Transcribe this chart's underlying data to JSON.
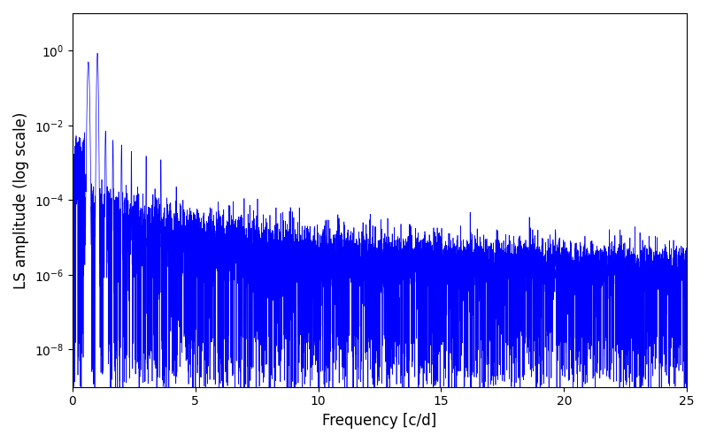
{
  "title": "",
  "xlabel": "Frequency [c/d]",
  "ylabel": "LS amplitude (log scale)",
  "xlim": [
    0,
    25
  ],
  "ylim_log": [
    1e-09,
    10
  ],
  "yticks": [
    1e-08,
    1e-06,
    0.0001,
    0.01,
    1.0
  ],
  "line_color": "#0000ff",
  "line_width": 0.5,
  "figsize": [
    8.0,
    5.0
  ],
  "dpi": 100,
  "freq_max": 25.0,
  "n_points": 8000,
  "seed": 7
}
